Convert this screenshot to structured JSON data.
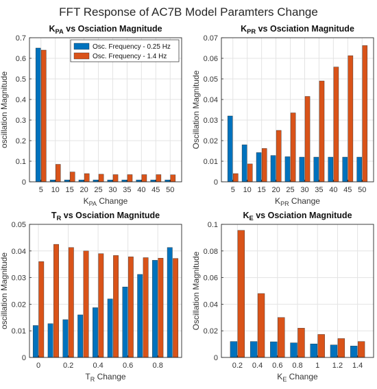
{
  "figure": {
    "title": "FFT Response of AC7B Model Paramters Change"
  },
  "chart_data": [
    {
      "type": "bar",
      "title": "K_PA vs Osciation Magnitude",
      "title_parts": {
        "base": "K",
        "sub": "PA",
        "rest": " vs Osciation Magnitude"
      },
      "xlabel": "K_PA Change",
      "xlabel_parts": {
        "base": "K",
        "sub": "PA",
        "rest": " Change"
      },
      "ylabel": "oscillation Magnitude",
      "categories": [
        "5",
        "10",
        "15",
        "20",
        "25",
        "30",
        "35",
        "40",
        "45",
        "50"
      ],
      "ylim": [
        0,
        0.7
      ],
      "yticks": [
        "0",
        "0.1",
        "0.2",
        "0.3",
        "0.4",
        "0.5",
        "0.6",
        "0.7"
      ],
      "grid": true,
      "legend": "top-right",
      "series": [
        {
          "name": "Osc. Frequency - 0.25 Hz",
          "color": "#0072BD",
          "values": [
            0.65,
            0.009,
            0.009,
            0.009,
            0.009,
            0.009,
            0.009,
            0.009,
            0.009,
            0.009
          ]
        },
        {
          "name": "Osc. Frequency - 1.4 Hz",
          "color": "#D95319",
          "values": [
            0.64,
            0.085,
            0.048,
            0.04,
            0.037,
            0.035,
            0.035,
            0.035,
            0.035,
            0.034
          ]
        }
      ]
    },
    {
      "type": "bar",
      "title": "K_PR vs Osciation Magnitude",
      "title_parts": {
        "base": "K",
        "sub": "PR",
        "rest": " vs Osciation Magnitude"
      },
      "xlabel": "K_PR Change",
      "xlabel_parts": {
        "base": "K",
        "sub": "PR",
        "rest": " Change"
      },
      "ylabel": "Oscillation Magnitude",
      "categories": [
        "5",
        "10",
        "15",
        "20",
        "25",
        "30",
        "35",
        "40",
        "45",
        "50"
      ],
      "ylim": [
        0,
        0.07
      ],
      "yticks": [
        "0",
        "0.01",
        "0.02",
        "0.03",
        "0.04",
        "0.05",
        "0.06",
        "0.07"
      ],
      "grid": true,
      "series": [
        {
          "name": "Osc. Frequency - 0.25 Hz",
          "color": "#0072BD",
          "values": [
            0.032,
            0.018,
            0.0142,
            0.0128,
            0.0122,
            0.012,
            0.012,
            0.012,
            0.012,
            0.012
          ]
        },
        {
          "name": "Osc. Frequency - 1.4 Hz",
          "color": "#D95319",
          "values": [
            0.004,
            0.0087,
            0.0162,
            0.025,
            0.0335,
            0.0415,
            0.049,
            0.0558,
            0.0613,
            0.0662
          ]
        }
      ]
    },
    {
      "type": "bar",
      "title": "T_R vs Osciation Magnitude",
      "title_parts": {
        "base": "T",
        "sub": "R",
        "rest": " vs Osciation Magnitude"
      },
      "xlabel": "T_R Change",
      "xlabel_parts": {
        "base": "T",
        "sub": "R",
        "rest": " Change"
      },
      "ylabel": "oscillation Magnitude",
      "x": [
        0,
        0.1,
        0.2,
        0.3,
        0.4,
        0.5,
        0.6,
        0.7,
        0.8,
        0.9
      ],
      "xlim": [
        -0.06,
        0.96
      ],
      "xticks": [
        "0",
        "0.2",
        "0.4",
        "0.6",
        "0.8"
      ],
      "ylim": [
        0,
        0.05
      ],
      "yticks": [
        "0",
        "0.01",
        "0.02",
        "0.03",
        "0.04",
        "0.05"
      ],
      "grid": true,
      "series": [
        {
          "name": "Osc. Frequency - 0.25 Hz",
          "color": "#0072BD",
          "values": [
            0.012,
            0.0127,
            0.0142,
            0.016,
            0.0187,
            0.022,
            0.0265,
            0.0312,
            0.0365,
            0.0413
          ]
        },
        {
          "name": "Osc. Frequency - 1.4 Hz",
          "color": "#D95319",
          "values": [
            0.036,
            0.0425,
            0.0413,
            0.04,
            0.039,
            0.0383,
            0.0378,
            0.0375,
            0.0373,
            0.0372
          ]
        }
      ]
    },
    {
      "type": "bar",
      "title": "K_E vs Osciation Magnitude",
      "title_parts": {
        "base": "K",
        "sub": "E",
        "rest": " vs Osciation Magnitude"
      },
      "xlabel": "K_E Change",
      "xlabel_parts": {
        "base": "K",
        "sub": "E",
        "rest": " Change"
      },
      "ylabel": "Oscillation Magnitude",
      "categories": [
        "0.2",
        "0.4",
        "0.6",
        "0.8",
        "1",
        "1.2",
        "1.4"
      ],
      "ylim": [
        0,
        0.1
      ],
      "yticks": [
        "0",
        "0.02",
        "0.04",
        "0.06",
        "0.08",
        "0.1"
      ],
      "grid": true,
      "series": [
        {
          "name": "Osc. Frequency - 0.25 Hz",
          "color": "#0072BD",
          "values": [
            0.012,
            0.012,
            0.0118,
            0.011,
            0.0102,
            0.0094,
            0.0086
          ]
        },
        {
          "name": "Osc. Frequency - 1.4 Hz",
          "color": "#D95319",
          "values": [
            0.0955,
            0.048,
            0.03,
            0.022,
            0.0173,
            0.0142,
            0.012
          ]
        }
      ]
    }
  ]
}
